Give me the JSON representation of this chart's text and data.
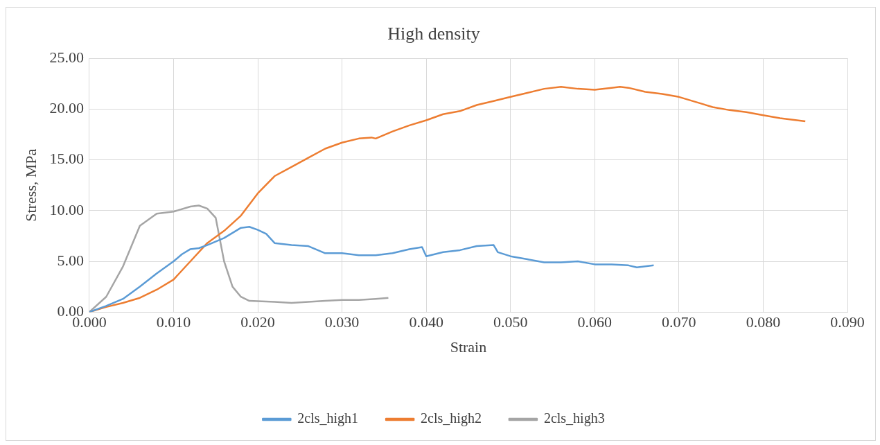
{
  "chart_data": {
    "type": "line",
    "title": "High density",
    "xlabel": "Strain",
    "ylabel": "Stress, MPa",
    "xlim": [
      0,
      0.09
    ],
    "ylim": [
      0,
      25
    ],
    "xticks": [
      {
        "value": 0,
        "label": "0.000"
      },
      {
        "value": 0.01,
        "label": "0.010"
      },
      {
        "value": 0.02,
        "label": "0.020"
      },
      {
        "value": 0.03,
        "label": "0.030"
      },
      {
        "value": 0.04,
        "label": "0.040"
      },
      {
        "value": 0.05,
        "label": "0.050"
      },
      {
        "value": 0.06,
        "label": "0.060"
      },
      {
        "value": 0.07,
        "label": "0.070"
      },
      {
        "value": 0.08,
        "label": "0.080"
      },
      {
        "value": 0.09,
        "label": "0.090"
      }
    ],
    "yticks": [
      {
        "value": 0,
        "label": "0.00"
      },
      {
        "value": 5,
        "label": "5.00"
      },
      {
        "value": 10,
        "label": "10.00"
      },
      {
        "value": 15,
        "label": "15.00"
      },
      {
        "value": 20,
        "label": "20.00"
      },
      {
        "value": 25,
        "label": "25.00"
      }
    ],
    "grid": true,
    "legend": "bottom",
    "marker": "none",
    "line_style": "solid",
    "series": [
      {
        "name": "2cls_high1",
        "color": "#5b9bd5",
        "x": [
          0,
          0.002,
          0.004,
          0.006,
          0.008,
          0.01,
          0.011,
          0.012,
          0.013,
          0.014,
          0.016,
          0.018,
          0.019,
          0.02,
          0.021,
          0.022,
          0.024,
          0.026,
          0.028,
          0.03,
          0.032,
          0.034,
          0.036,
          0.038,
          0.0395,
          0.04,
          0.042,
          0.044,
          0.046,
          0.048,
          0.0485,
          0.05,
          0.052,
          0.054,
          0.056,
          0.058,
          0.06,
          0.062,
          0.064,
          0.065,
          0.067
        ],
        "values": [
          0,
          0.6,
          1.3,
          2.5,
          3.8,
          5.0,
          5.7,
          6.2,
          6.3,
          6.6,
          7.3,
          8.3,
          8.4,
          8.1,
          7.7,
          6.8,
          6.6,
          6.5,
          5.8,
          5.8,
          5.6,
          5.6,
          5.8,
          6.2,
          6.4,
          5.5,
          5.9,
          6.1,
          6.5,
          6.6,
          5.9,
          5.5,
          5.2,
          4.9,
          4.9,
          5.0,
          4.7,
          4.7,
          4.6,
          4.4,
          4.6
        ]
      },
      {
        "name": "2cls_high2",
        "color": "#ed7d31",
        "x": [
          0,
          0.002,
          0.004,
          0.006,
          0.008,
          0.01,
          0.012,
          0.014,
          0.016,
          0.018,
          0.02,
          0.022,
          0.024,
          0.026,
          0.028,
          0.03,
          0.032,
          0.0335,
          0.034,
          0.036,
          0.038,
          0.04,
          0.042,
          0.044,
          0.046,
          0.048,
          0.05,
          0.052,
          0.054,
          0.056,
          0.058,
          0.06,
          0.062,
          0.063,
          0.064,
          0.066,
          0.068,
          0.07,
          0.072,
          0.074,
          0.076,
          0.078,
          0.08,
          0.082,
          0.084,
          0.085
        ],
        "values": [
          0,
          0.5,
          0.9,
          1.4,
          2.2,
          3.2,
          5.0,
          6.8,
          8.0,
          9.5,
          11.7,
          13.4,
          14.3,
          15.2,
          16.1,
          16.7,
          17.1,
          17.2,
          17.1,
          17.8,
          18.4,
          18.9,
          19.5,
          19.8,
          20.4,
          20.8,
          21.2,
          21.6,
          22.0,
          22.2,
          22.0,
          21.9,
          22.1,
          22.2,
          22.1,
          21.7,
          21.5,
          21.2,
          20.7,
          20.2,
          19.9,
          19.7,
          19.4,
          19.1,
          18.9,
          18.8
        ]
      },
      {
        "name": "2cls_high3",
        "color": "#a5a5a5",
        "x": [
          0,
          0.002,
          0.004,
          0.006,
          0.008,
          0.01,
          0.012,
          0.013,
          0.014,
          0.015,
          0.016,
          0.017,
          0.018,
          0.019,
          0.022,
          0.024,
          0.026,
          0.028,
          0.03,
          0.032,
          0.034,
          0.0355
        ],
        "values": [
          0,
          1.5,
          4.5,
          8.5,
          9.7,
          9.9,
          10.4,
          10.5,
          10.2,
          9.3,
          5.0,
          2.5,
          1.5,
          1.1,
          1.0,
          0.9,
          1.0,
          1.1,
          1.2,
          1.2,
          1.3,
          1.4
        ]
      }
    ]
  }
}
